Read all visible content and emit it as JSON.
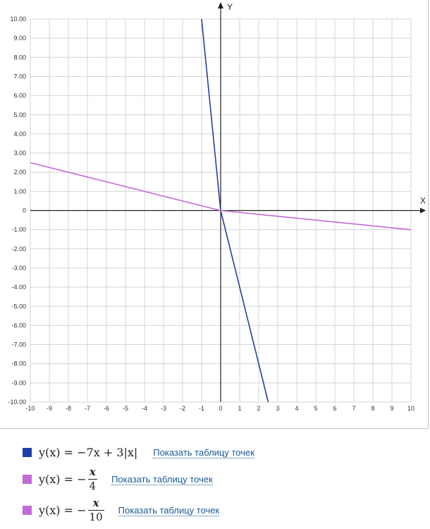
{
  "chart_data": {
    "type": "line",
    "axis_x_label": "X",
    "axis_y_label": "Y",
    "xlim": [
      -10,
      10
    ],
    "ylim": [
      -10,
      10
    ],
    "grid": true,
    "x_ticks": [
      "-10",
      "-9",
      "-8",
      "-7",
      "-6",
      "-5",
      "-4",
      "-3",
      "-2",
      "-1",
      "0",
      "1",
      "2",
      "3",
      "4",
      "5",
      "6",
      "7",
      "8",
      "9",
      "10"
    ],
    "y_ticks": [
      "10.00",
      "9.00",
      "8.00",
      "7.00",
      "6.00",
      "5.00",
      "4.00",
      "3.00",
      "2.00",
      "1.00",
      "0",
      "-1.00",
      "-2.00",
      "-3.00",
      "-4.00",
      "-5.00",
      "-6.00",
      "-7.00",
      "-8.00",
      "-9.00",
      "-10.00"
    ],
    "series": [
      {
        "color": "#2a3e9c",
        "x": [
          -1,
          0,
          2.5
        ],
        "y": [
          10,
          0,
          -10
        ]
      },
      {
        "color": "#c46ad6",
        "x": [
          -10,
          0,
          10
        ],
        "y": [
          2.5,
          0,
          -1
        ]
      }
    ]
  },
  "legend": {
    "items": [
      {
        "color": "#1f3fa8",
        "prefix": "y(x) = −7x + 3|x|",
        "link": "Показать таблицу точек"
      },
      {
        "color": "#c46ad6",
        "prefix": "y(x) = −",
        "num": "x",
        "den": "4",
        "link": "Показать таблицу точек"
      },
      {
        "color": "#c46ad6",
        "prefix": "y(x) = −",
        "num": "x",
        "den": "10",
        "link": "Показать таблицу точек"
      }
    ]
  }
}
